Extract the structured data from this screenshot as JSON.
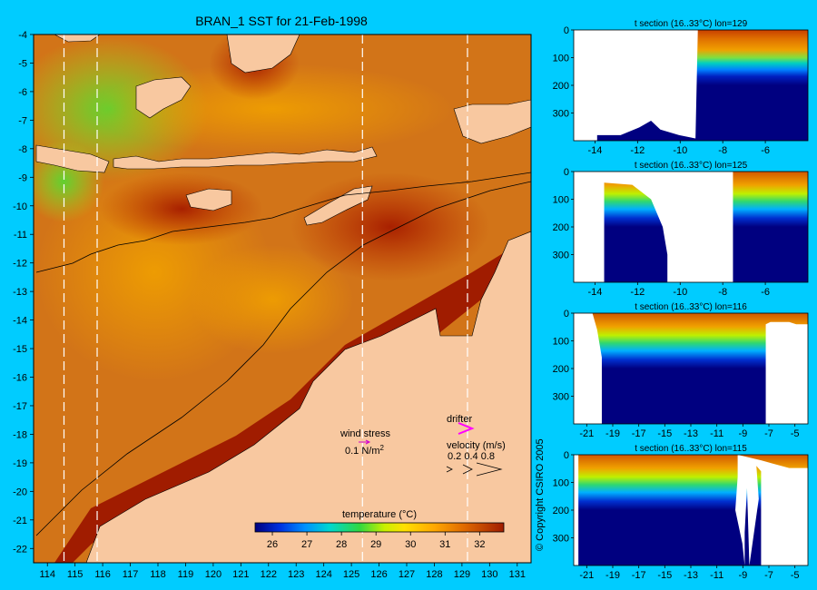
{
  "main_map": {
    "title": "BRAN_1 SST for 21-Feb-1998",
    "lon_ticks": [
      "114",
      "115",
      "116",
      "117",
      "118",
      "119",
      "120",
      "121",
      "122",
      "123",
      "124",
      "125",
      "126",
      "127",
      "128",
      "129",
      "130",
      "131"
    ],
    "lat_ticks": [
      "-4",
      "-5",
      "-6",
      "-7",
      "-8",
      "-9",
      "-10",
      "-11",
      "-12",
      "-13",
      "-14",
      "-15",
      "-16",
      "-17",
      "-18",
      "-19",
      "-20",
      "-21",
      "-22"
    ],
    "section_lons": [
      114.6,
      115.8,
      125.4,
      129.2
    ],
    "land_color": "#f8c8a0",
    "legend": {
      "wind_label": "wind stress",
      "wind_value": "0.1 N/m",
      "wind_exp": "2",
      "drifter_label": "drifter",
      "velocity_label": "velocity (m/s)",
      "velocity_values": "0.2 0.4 0.8"
    },
    "colorbar": {
      "title": "temperature (°C)",
      "ticks": [
        "26",
        "27",
        "28",
        "29",
        "30",
        "31",
        "32"
      ],
      "colors": [
        "#00007f",
        "#0040ff",
        "#00a0ff",
        "#00e0c0",
        "#40e040",
        "#c0f000",
        "#ffe000",
        "#ffb000",
        "#f08000",
        "#d05000",
        "#a01c00"
      ]
    }
  },
  "chart_data": {
    "type": "heatmap",
    "title": "BRAN_1 SST for 21-Feb-1998",
    "x_range": [
      113.5,
      131.5
    ],
    "y_range": [
      -22.5,
      -4
    ],
    "value_range": [
      25.5,
      32.7
    ],
    "unit": "°C",
    "sections": [
      {
        "title": "t section (16..33°C) lon=129",
        "x_ticks": [
          "-14",
          "-12",
          "-10",
          "-8",
          "-6"
        ],
        "y_ticks": [
          "0",
          "100",
          "200",
          "300"
        ]
      },
      {
        "title": "t section (16..33°C) lon=125",
        "x_ticks": [
          "-14",
          "-12",
          "-10",
          "-8",
          "-6"
        ],
        "y_ticks": [
          "0",
          "100",
          "200",
          "300"
        ]
      },
      {
        "title": "t section (16..33°C) lon=116",
        "x_ticks": [
          "-21",
          "-19",
          "-17",
          "-15",
          "-13",
          "-11",
          "-9",
          "-7",
          "-5"
        ],
        "y_ticks": [
          "0",
          "100",
          "200",
          "300"
        ]
      },
      {
        "title": "t section (16..33°C) lon=115",
        "x_ticks": [
          "-21",
          "-19",
          "-17",
          "-15",
          "-13",
          "-11",
          "-9",
          "-7",
          "-5"
        ],
        "y_ticks": [
          "0",
          "100",
          "200",
          "300"
        ]
      }
    ]
  },
  "copyright": "© Copyright CSIRO 2005"
}
